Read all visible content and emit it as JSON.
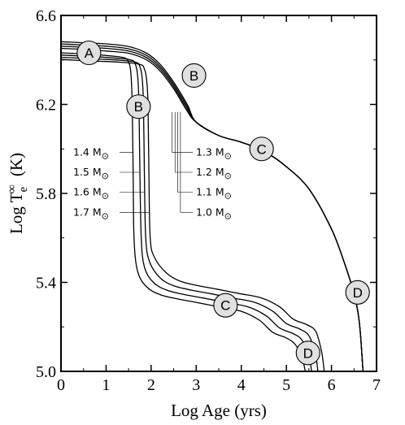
{
  "chart_data": {
    "type": "line",
    "title": "",
    "xlabel": "Log Age (yrs)",
    "ylabel": {
      "main": "Log T",
      "sup": "∞",
      "sub": "e",
      "unit": "(K)"
    },
    "xlim": [
      0,
      7
    ],
    "ylim": [
      5.0,
      6.6
    ],
    "x_ticks": [
      0,
      1,
      2,
      3,
      4,
      5,
      6,
      7
    ],
    "y_ticks": [
      5.0,
      5.4,
      5.8,
      6.2,
      6.6
    ],
    "y_tick_labels": [
      "5.0",
      "5.4",
      "5.8",
      "6.2",
      "6.6"
    ],
    "grid": false,
    "legend": "none",
    "sun_symbol": "⊙",
    "series": [
      {
        "mass": "1.0",
        "points": [
          [
            0.0,
            6.452
          ],
          [
            0.5,
            6.447
          ],
          [
            1.0,
            6.44
          ],
          [
            1.5,
            6.43
          ],
          [
            1.9,
            6.4
          ],
          [
            2.2,
            6.35
          ],
          [
            2.5,
            6.27
          ],
          [
            2.8,
            6.17
          ],
          [
            3.0,
            6.12
          ],
          [
            3.5,
            6.06
          ],
          [
            4.0,
            6.03
          ],
          [
            4.5,
            5.99
          ],
          [
            5.0,
            5.92
          ],
          [
            5.5,
            5.82
          ],
          [
            6.0,
            5.64
          ],
          [
            6.3,
            5.48
          ],
          [
            6.5,
            5.35
          ],
          [
            6.6,
            5.25
          ],
          [
            6.65,
            5.15
          ],
          [
            6.68,
            5.06
          ],
          [
            6.7,
            5.0
          ]
        ]
      },
      {
        "mass": "1.1",
        "points": [
          [
            0.0,
            6.462
          ],
          [
            0.5,
            6.457
          ],
          [
            1.0,
            6.452
          ],
          [
            1.5,
            6.44
          ],
          [
            1.9,
            6.41
          ],
          [
            2.2,
            6.36
          ],
          [
            2.5,
            6.28
          ],
          [
            2.8,
            6.18
          ],
          [
            3.0,
            6.12
          ],
          [
            3.5,
            6.06
          ],
          [
            4.0,
            6.03
          ],
          [
            4.5,
            5.99
          ],
          [
            5.0,
            5.92
          ],
          [
            5.5,
            5.82
          ],
          [
            6.0,
            5.64
          ],
          [
            6.3,
            5.48
          ],
          [
            6.5,
            5.35
          ],
          [
            6.6,
            5.25
          ],
          [
            6.65,
            5.15
          ],
          [
            6.68,
            5.06
          ],
          [
            6.7,
            5.0
          ]
        ]
      },
      {
        "mass": "1.2",
        "points": [
          [
            0.0,
            6.472
          ],
          [
            0.5,
            6.467
          ],
          [
            1.0,
            6.462
          ],
          [
            1.5,
            6.45
          ],
          [
            1.9,
            6.42
          ],
          [
            2.2,
            6.37
          ],
          [
            2.5,
            6.29
          ],
          [
            2.8,
            6.19
          ],
          [
            3.0,
            6.12
          ],
          [
            3.5,
            6.06
          ],
          [
            4.0,
            6.03
          ],
          [
            4.5,
            5.99
          ],
          [
            5.0,
            5.92
          ],
          [
            5.5,
            5.82
          ],
          [
            6.0,
            5.64
          ],
          [
            6.3,
            5.48
          ],
          [
            6.5,
            5.35
          ],
          [
            6.6,
            5.25
          ],
          [
            6.65,
            5.15
          ],
          [
            6.68,
            5.06
          ],
          [
            6.7,
            5.0
          ]
        ]
      },
      {
        "mass": "1.3",
        "points": [
          [
            0.0,
            6.482
          ],
          [
            0.5,
            6.477
          ],
          [
            1.0,
            6.472
          ],
          [
            1.5,
            6.46
          ],
          [
            1.9,
            6.43
          ],
          [
            2.2,
            6.38
          ],
          [
            2.5,
            6.3
          ],
          [
            2.8,
            6.2
          ],
          [
            3.0,
            6.12
          ],
          [
            3.5,
            6.06
          ],
          [
            4.0,
            6.03
          ],
          [
            4.5,
            5.99
          ],
          [
            5.0,
            5.92
          ],
          [
            5.5,
            5.82
          ],
          [
            6.0,
            5.64
          ],
          [
            6.3,
            5.48
          ],
          [
            6.5,
            5.35
          ],
          [
            6.6,
            5.25
          ],
          [
            6.65,
            5.15
          ],
          [
            6.68,
            5.06
          ],
          [
            6.7,
            5.0
          ]
        ]
      },
      {
        "mass": "1.4",
        "points": [
          [
            0.0,
            6.432
          ],
          [
            0.6,
            6.426
          ],
          [
            1.0,
            6.42
          ],
          [
            1.4,
            6.41
          ],
          [
            1.5,
            6.39
          ],
          [
            1.55,
            6.34
          ],
          [
            1.58,
            6.2
          ],
          [
            1.6,
            5.9
          ],
          [
            1.62,
            5.6
          ],
          [
            1.7,
            5.45
          ],
          [
            1.9,
            5.38
          ],
          [
            2.2,
            5.345
          ],
          [
            2.6,
            5.325
          ],
          [
            3.0,
            5.31
          ],
          [
            3.5,
            5.29
          ],
          [
            4.0,
            5.27
          ],
          [
            4.4,
            5.23
          ],
          [
            4.7,
            5.175
          ],
          [
            5.0,
            5.15
          ],
          [
            5.2,
            5.12
          ],
          [
            5.35,
            5.06
          ],
          [
            5.42,
            5.0
          ]
        ]
      },
      {
        "mass": "1.5",
        "points": [
          [
            0.0,
            6.422
          ],
          [
            0.6,
            6.416
          ],
          [
            1.1,
            6.41
          ],
          [
            1.55,
            6.4
          ],
          [
            1.65,
            6.38
          ],
          [
            1.7,
            6.33
          ],
          [
            1.73,
            6.2
          ],
          [
            1.75,
            5.9
          ],
          [
            1.78,
            5.6
          ],
          [
            1.85,
            5.47
          ],
          [
            2.05,
            5.4
          ],
          [
            2.35,
            5.365
          ],
          [
            2.75,
            5.345
          ],
          [
            3.15,
            5.33
          ],
          [
            3.65,
            5.31
          ],
          [
            4.15,
            5.29
          ],
          [
            4.55,
            5.25
          ],
          [
            4.85,
            5.195
          ],
          [
            5.15,
            5.17
          ],
          [
            5.35,
            5.14
          ],
          [
            5.5,
            5.07
          ],
          [
            5.56,
            5.0
          ]
        ]
      },
      {
        "mass": "1.6",
        "points": [
          [
            0.0,
            6.412
          ],
          [
            0.6,
            6.406
          ],
          [
            1.2,
            6.4
          ],
          [
            1.65,
            6.39
          ],
          [
            1.75,
            6.37
          ],
          [
            1.8,
            6.32
          ],
          [
            1.83,
            6.2
          ],
          [
            1.85,
            5.9
          ],
          [
            1.88,
            5.6
          ],
          [
            1.97,
            5.49
          ],
          [
            2.2,
            5.42
          ],
          [
            2.5,
            5.385
          ],
          [
            2.9,
            5.365
          ],
          [
            3.3,
            5.35
          ],
          [
            3.8,
            5.33
          ],
          [
            4.3,
            5.31
          ],
          [
            4.7,
            5.27
          ],
          [
            5.0,
            5.215
          ],
          [
            5.3,
            5.19
          ],
          [
            5.5,
            5.16
          ],
          [
            5.64,
            5.08
          ],
          [
            5.7,
            5.0
          ]
        ]
      },
      {
        "mass": "1.7",
        "points": [
          [
            0.0,
            6.402
          ],
          [
            0.6,
            6.396
          ],
          [
            1.3,
            6.39
          ],
          [
            1.75,
            6.38
          ],
          [
            1.85,
            6.36
          ],
          [
            1.9,
            6.31
          ],
          [
            1.93,
            6.2
          ],
          [
            1.95,
            5.9
          ],
          [
            1.98,
            5.6
          ],
          [
            2.08,
            5.51
          ],
          [
            2.35,
            5.44
          ],
          [
            2.65,
            5.405
          ],
          [
            3.05,
            5.385
          ],
          [
            3.45,
            5.37
          ],
          [
            3.95,
            5.35
          ],
          [
            4.45,
            5.33
          ],
          [
            4.85,
            5.29
          ],
          [
            5.15,
            5.235
          ],
          [
            5.45,
            5.21
          ],
          [
            5.65,
            5.18
          ],
          [
            5.78,
            5.09
          ],
          [
            5.84,
            5.0
          ]
        ]
      }
    ],
    "phase_markers": [
      {
        "label": "A",
        "x": 0.62,
        "y": 6.432
      },
      {
        "label": "B",
        "x": 2.95,
        "y": 6.33
      },
      {
        "label": "B",
        "x": 1.72,
        "y": 6.19
      },
      {
        "label": "C",
        "x": 4.45,
        "y": 6.0
      },
      {
        "label": "C",
        "x": 3.65,
        "y": 5.297
      },
      {
        "label": "D",
        "x": 6.58,
        "y": 5.355
      },
      {
        "label": "D",
        "x": 5.48,
        "y": 5.083
      }
    ],
    "mass_annotations": {
      "left": [
        {
          "mass": "1.4",
          "y": 5.985,
          "series_x": 1.61
        },
        {
          "mass": "1.5",
          "y": 5.895,
          "series_x": 1.76
        },
        {
          "mass": "1.6",
          "y": 5.805,
          "series_x": 1.86
        },
        {
          "mass": "1.7",
          "y": 5.715,
          "series_x": 1.96
        }
      ],
      "right": [
        {
          "mass": "1.3",
          "y": 5.985,
          "series_x": 2.46
        },
        {
          "mass": "1.2",
          "y": 5.895,
          "series_x": 2.53
        },
        {
          "mass": "1.1",
          "y": 5.805,
          "series_x": 2.59
        },
        {
          "mass": "1.0",
          "y": 5.715,
          "series_x": 2.65
        }
      ]
    }
  }
}
